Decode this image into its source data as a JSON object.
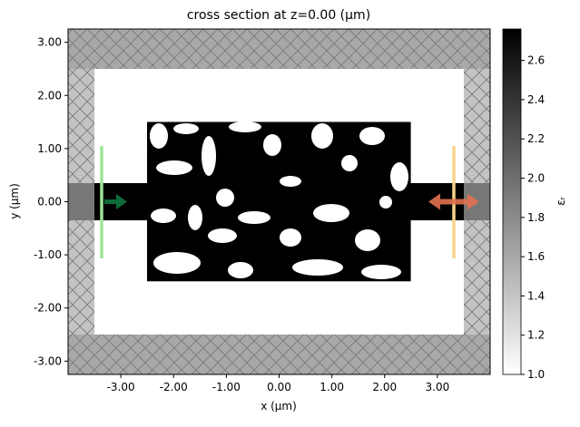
{
  "chart_data": {
    "type": "heatmap",
    "title": "cross section at z=0.00 (μm)",
    "x_label": "x (μm)",
    "y_label": "y (μm)",
    "xlim": [
      -4.0,
      4.0
    ],
    "ylim": [
      -3.25,
      3.25
    ],
    "xticks": [
      {
        "value": -3,
        "label": "-3.00"
      },
      {
        "value": -2,
        "label": "-2.00"
      },
      {
        "value": -1,
        "label": "-1.00"
      },
      {
        "value": 0,
        "label": "0.00"
      },
      {
        "value": 1,
        "label": "1.00"
      },
      {
        "value": 2,
        "label": "2.00"
      },
      {
        "value": 3,
        "label": "3.00"
      }
    ],
    "yticks": [
      {
        "value": -3,
        "label": "-3.00"
      },
      {
        "value": -2,
        "label": "-2.00"
      },
      {
        "value": -1,
        "label": "-1.00"
      },
      {
        "value": 0,
        "label": "0.00"
      },
      {
        "value": 1,
        "label": "1.00"
      },
      {
        "value": 2,
        "label": "2.00"
      },
      {
        "value": 3,
        "label": "3.00"
      }
    ],
    "colorbar": {
      "label": "εᵣ",
      "lim": [
        1.0,
        2.76
      ],
      "ticks": [
        {
          "value": 1,
          "label": "1.0"
        },
        1.2,
        1.4,
        1.6,
        1.8,
        {
          "value": 2,
          "label": "2.0"
        },
        2.2,
        2.4,
        2.6
      ]
    }
  }
}
